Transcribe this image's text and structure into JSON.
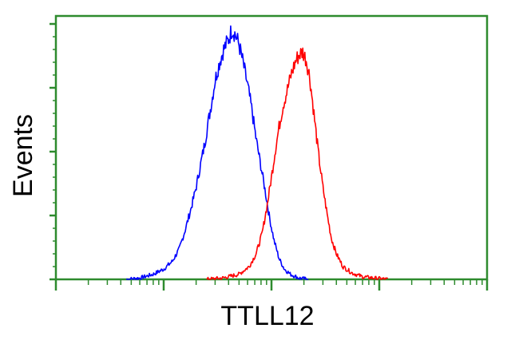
{
  "chart_data": {
    "type": "line",
    "title": "",
    "xlabel": "TTLL12",
    "ylabel": "Events",
    "x_scale": "log",
    "xlim": [
      1,
      10000
    ],
    "ylim": [
      0,
      100
    ],
    "grid": false,
    "legend": "none",
    "frame_color": "#2e8b2e",
    "series": [
      {
        "color": "#0000ff",
        "points": [
          [
            4.5,
            0
          ],
          [
            6,
            0.5
          ],
          [
            8,
            2
          ],
          [
            10,
            4
          ],
          [
            12,
            7
          ],
          [
            14,
            12
          ],
          [
            16,
            20
          ],
          [
            18,
            28
          ],
          [
            20,
            36
          ],
          [
            22,
            45
          ],
          [
            24,
            53
          ],
          [
            26,
            62
          ],
          [
            28,
            70
          ],
          [
            30,
            78
          ],
          [
            33,
            85
          ],
          [
            36,
            90
          ],
          [
            40,
            94
          ],
          [
            43,
            98
          ],
          [
            46,
            96
          ],
          [
            50,
            92
          ],
          [
            55,
            84
          ],
          [
            60,
            76
          ],
          [
            66,
            66
          ],
          [
            72,
            55
          ],
          [
            80,
            44
          ],
          [
            88,
            34
          ],
          [
            96,
            24
          ],
          [
            106,
            15
          ],
          [
            118,
            8
          ],
          [
            132,
            4
          ],
          [
            150,
            2
          ],
          [
            180,
            0.5
          ],
          [
            220,
            0
          ]
        ]
      },
      {
        "color": "#ff0000",
        "points": [
          [
            25,
            0
          ],
          [
            35,
            0.5
          ],
          [
            50,
            2
          ],
          [
            62,
            5
          ],
          [
            72,
            10
          ],
          [
            82,
            18
          ],
          [
            92,
            30
          ],
          [
            100,
            40
          ],
          [
            108,
            50
          ],
          [
            118,
            60
          ],
          [
            128,
            68
          ],
          [
            140,
            74
          ],
          [
            152,
            80
          ],
          [
            166,
            85
          ],
          [
            180,
            88
          ],
          [
            195,
            89
          ],
          [
            210,
            86
          ],
          [
            225,
            80
          ],
          [
            240,
            70
          ],
          [
            255,
            60
          ],
          [
            275,
            48
          ],
          [
            300,
            36
          ],
          [
            330,
            25
          ],
          [
            360,
            16
          ],
          [
            400,
            10
          ],
          [
            460,
            5
          ],
          [
            560,
            2.5
          ],
          [
            700,
            1
          ],
          [
            900,
            0.5
          ],
          [
            1200,
            0
          ]
        ]
      }
    ]
  }
}
